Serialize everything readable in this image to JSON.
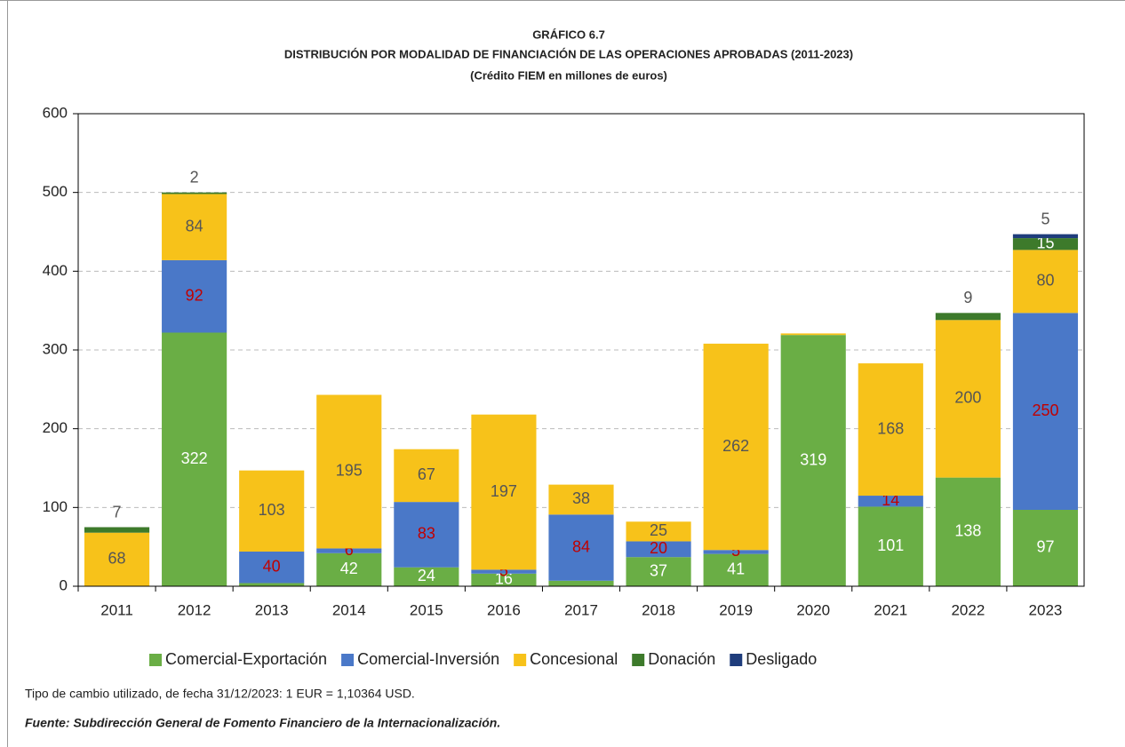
{
  "chart_data": {
    "type": "stacked_bar",
    "title": "GRÁFICO 6.7",
    "subtitle": "DISTRIBUCIÓN POR MODALIDAD DE FINANCIACIÓN DE LAS OPERACIONES APROBADAS (2011-2023)",
    "subtitle2": "(Crédito FIEM en millones de euros)",
    "categories": [
      "2011",
      "2012",
      "2013",
      "2014",
      "2015",
      "2016",
      "2017",
      "2018",
      "2019",
      "2020",
      "2021",
      "2022",
      "2023"
    ],
    "series": [
      {
        "name": "Comercial-Exportación",
        "color": "#6aae45",
        "label_color": "#ffffff",
        "values": [
          0,
          322,
          4,
          42,
          24,
          16,
          7,
          37,
          41,
          319,
          101,
          138,
          97
        ],
        "value_labels": [
          null,
          "322",
          "4",
          "42",
          "24",
          "16",
          "7",
          "37",
          "41",
          "319",
          "101",
          "138",
          "97"
        ]
      },
      {
        "name": "Comercial-Inversión",
        "color": "#4a78c8",
        "label_color": "#c00000",
        "values": [
          0,
          92,
          40,
          6,
          83,
          5,
          84,
          20,
          5,
          0,
          14,
          0,
          250
        ],
        "value_labels": [
          null,
          "92",
          "40",
          "6",
          "83",
          "5",
          "84",
          "20",
          "5",
          null,
          "14",
          null,
          "250"
        ]
      },
      {
        "name": "Concesional",
        "color": "#f7c21a",
        "label_color": "#555555",
        "values": [
          68,
          84,
          103,
          195,
          67,
          197,
          38,
          25,
          262,
          2,
          168,
          200,
          80
        ],
        "value_labels": [
          "68",
          "84",
          "103",
          "195",
          "67",
          "197",
          "38",
          "25",
          "262",
          null,
          "168",
          "200",
          "80"
        ]
      },
      {
        "name": "Donación",
        "color": "#3d7a2b",
        "label_color": "#555555",
        "values": [
          7,
          2,
          0,
          0,
          0,
          0,
          0,
          0,
          0,
          0,
          0,
          9,
          15
        ],
        "value_labels": [
          "7",
          "2",
          null,
          null,
          null,
          null,
          null,
          null,
          null,
          null,
          null,
          "9",
          "15"
        ]
      },
      {
        "name": "Desligado",
        "color": "#1f3d7c",
        "label_color": "#555555",
        "values": [
          0,
          0,
          0,
          0,
          0,
          0,
          0,
          0,
          0,
          0,
          0,
          0,
          5
        ],
        "value_labels": [
          null,
          null,
          null,
          null,
          null,
          null,
          null,
          null,
          null,
          null,
          null,
          null,
          "5"
        ]
      }
    ],
    "ylim": [
      0,
      600
    ],
    "yticks": [
      0,
      100,
      200,
      300,
      400,
      500,
      600
    ],
    "grid": true,
    "legend": "bottom",
    "note": "Tipo de cambio utilizado, de fecha 31/12/2023: 1 EUR = 1,10364 USD.",
    "source": "Fuente: Subdirección General de Fomento Financiero de la Internacionalización."
  }
}
